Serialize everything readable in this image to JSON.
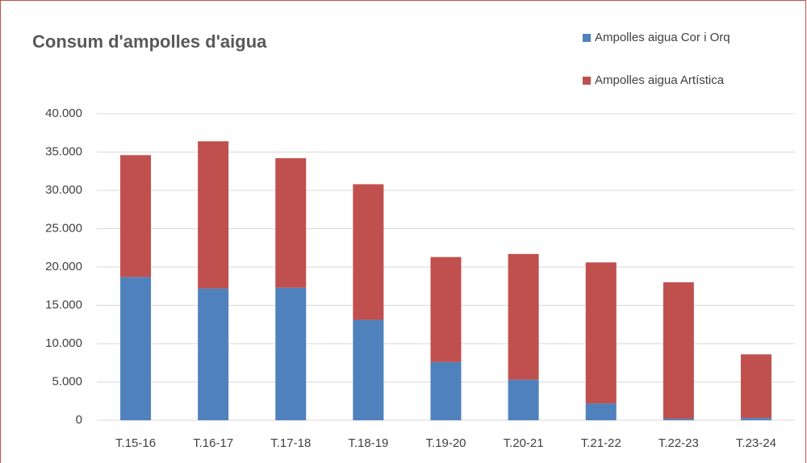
{
  "chart_data": {
    "type": "stacked_bar",
    "title": "Consum d'ampolles d'aigua",
    "categories": [
      "T.15-16",
      "T.16-17",
      "T.17-18",
      "T.18-19",
      "T.19-20",
      "T.20-21",
      "T.21-22",
      "T.22-23",
      "T.23-24"
    ],
    "series": [
      {
        "name": "Ampolles aigua Cor i Orq",
        "color": "#4f81bd",
        "values": [
          18700,
          17200,
          17300,
          13100,
          7600,
          5300,
          2200,
          200,
          300
        ]
      },
      {
        "name": "Ampolles aigua Artística",
        "color": "#c0504d",
        "values": [
          15900,
          19200,
          16900,
          17700,
          13700,
          16400,
          18400,
          17800,
          8300
        ]
      }
    ],
    "ylim": [
      0,
      40000
    ],
    "yticks": [
      0,
      {
        "value": 5000,
        "label": "5.000"
      },
      {
        "value": 10000,
        "label": "10.000"
      },
      {
        "value": 15000,
        "label": "15.000"
      },
      {
        "value": 20000,
        "label": "20.000"
      },
      {
        "value": 25000,
        "label": "25.000"
      },
      {
        "value": 30000,
        "label": "30.000"
      },
      {
        "value": 35000,
        "label": "35.000"
      },
      {
        "value": 40000,
        "label": "40.000"
      }
    ],
    "grid": true,
    "legend": "top-right"
  }
}
